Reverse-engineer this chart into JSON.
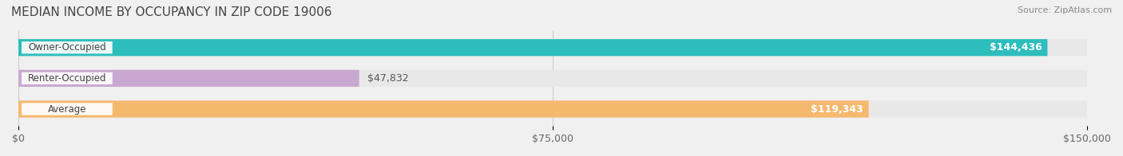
{
  "title": "MEDIAN INCOME BY OCCUPANCY IN ZIP CODE 19006",
  "source": "Source: ZipAtlas.com",
  "categories": [
    "Owner-Occupied",
    "Renter-Occupied",
    "Average"
  ],
  "values": [
    144436,
    47832,
    119343
  ],
  "bar_colors": [
    "#2dbdbd",
    "#c8a8d0",
    "#f5b96e"
  ],
  "label_texts": [
    "$144,436",
    "$47,832",
    "$119,343"
  ],
  "background_color": "#f0f0f0",
  "bar_bg_color": "#e8e8e8",
  "xlim": [
    0,
    150000
  ],
  "xticks": [
    0,
    75000,
    150000
  ],
  "xtick_labels": [
    "$0",
    "$75,000",
    "$150,000"
  ],
  "bar_height": 0.55,
  "title_fontsize": 11,
  "label_fontsize": 9,
  "tick_fontsize": 9
}
